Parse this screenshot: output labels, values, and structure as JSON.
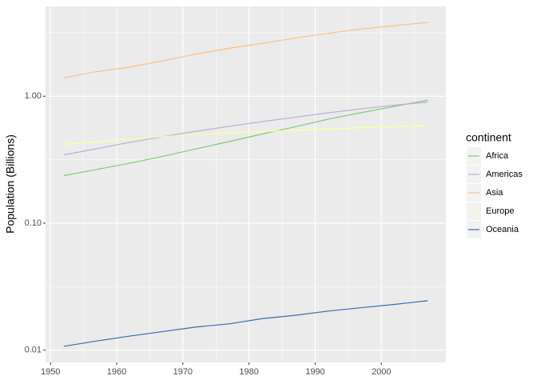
{
  "chart_data": {
    "type": "line",
    "x": [
      1952,
      1957,
      1962,
      1967,
      1972,
      1977,
      1982,
      1987,
      1992,
      1997,
      2002,
      2007
    ],
    "series": [
      {
        "name": "Africa",
        "color": "#7fc97f",
        "values": [
          0.237,
          0.265,
          0.297,
          0.336,
          0.385,
          0.439,
          0.504,
          0.575,
          0.66,
          0.743,
          0.833,
          0.93
        ]
      },
      {
        "name": "Americas",
        "color": "#beaed4",
        "values": [
          0.345,
          0.386,
          0.433,
          0.481,
          0.529,
          0.579,
          0.631,
          0.683,
          0.74,
          0.797,
          0.85,
          0.899
        ]
      },
      {
        "name": "Asia",
        "color": "#fdc086",
        "values": [
          1.395,
          1.562,
          1.696,
          1.905,
          2.15,
          2.385,
          2.61,
          2.872,
          3.133,
          3.383,
          3.601,
          3.812
        ]
      },
      {
        "name": "Europe",
        "color": "#ffff99",
        "values": [
          0.418,
          0.438,
          0.461,
          0.481,
          0.5,
          0.513,
          0.526,
          0.539,
          0.552,
          0.565,
          0.577,
          0.586
        ]
      },
      {
        "name": "Oceania",
        "color": "#386cb0",
        "values": [
          0.0107,
          0.0118,
          0.0129,
          0.014,
          0.0152,
          0.0161,
          0.0177,
          0.0188,
          0.0203,
          0.0216,
          0.0229,
          0.0245
        ]
      }
    ],
    "y_label": "Population (Billions)",
    "legend_title": "continent",
    "log_y": true,
    "grid": true,
    "legend_position": "right",
    "xlim": [
      1949.25,
      2009.75
    ],
    "xticks": [
      1950,
      1960,
      1970,
      1980,
      1990,
      2000
    ],
    "ylim": [
      0.008,
      5.1
    ],
    "yticks": [
      {
        "value": 0.01,
        "label": "0.01"
      },
      {
        "value": 0.1,
        "label": "0.10"
      },
      {
        "value": 1,
        "label": "1.00"
      }
    ]
  }
}
